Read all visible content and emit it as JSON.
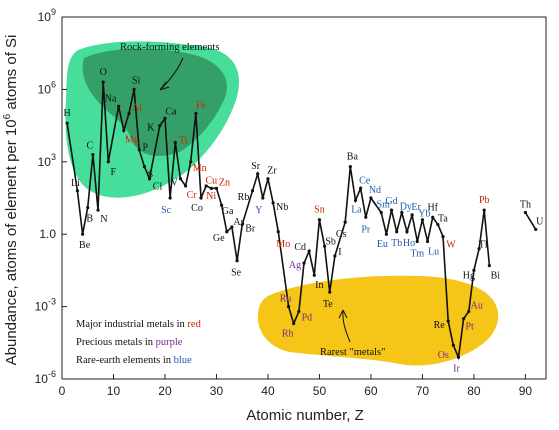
{
  "colors": {
    "red": "#cc2200",
    "purple": "#7a2a8c",
    "blue": "#1f5bb5",
    "black": "#111111",
    "rock_region": "#3ddc97",
    "rock_core": "#2e8b57",
    "rare_region": "#f5c518"
  },
  "chart_data": {
    "type": "line",
    "xlabel": "Atomic number, Z",
    "ylabel_main": "Abundance, atoms of element per 10",
    "ylabel_sup": "6",
    "ylabel_end": " atoms of Si",
    "xlim": [
      0,
      94
    ],
    "ylim_log10": [
      -6,
      9
    ],
    "x_ticks": [
      0,
      10,
      20,
      30,
      40,
      50,
      60,
      70,
      80,
      90
    ],
    "y_ticks": [
      {
        "base": "10",
        "exp": "9",
        "log": 9
      },
      {
        "base": "10",
        "exp": "6",
        "log": 6
      },
      {
        "base": "10",
        "exp": "3",
        "log": 3
      },
      {
        "base": "1.0",
        "exp": "",
        "log": 0
      },
      {
        "base": "10",
        "exp": "-3",
        "log": -3
      },
      {
        "base": "10",
        "exp": "-6",
        "log": -6
      }
    ],
    "region_labels": {
      "rock_forming": "Rock-forming elements",
      "rarest_metals": "Rarest \"metals\""
    },
    "legend": {
      "line1_prefix": "Major industrial metals in ",
      "line1_word": "red",
      "line2_prefix": "Precious metals in ",
      "line2_word": "purple",
      "line3_prefix": "Rare-earth elements in ",
      "line3_word": "blue"
    },
    "points": [
      {
        "z": 1,
        "sym": "H",
        "log": 4.6,
        "cat": "black"
      },
      {
        "z": 3,
        "sym": "Li",
        "log": 1.8,
        "cat": "black"
      },
      {
        "z": 4,
        "sym": "Be",
        "log": 0.0,
        "cat": "black"
      },
      {
        "z": 5,
        "sym": "B",
        "log": 1.1,
        "cat": "black"
      },
      {
        "z": 6,
        "sym": "C",
        "log": 3.3,
        "cat": "black"
      },
      {
        "z": 7,
        "sym": "N",
        "log": 1.0,
        "cat": "black"
      },
      {
        "z": 8,
        "sym": "O",
        "log": 6.3,
        "cat": "black"
      },
      {
        "z": 9,
        "sym": "F",
        "log": 3.0,
        "cat": "black"
      },
      {
        "z": 11,
        "sym": "Na",
        "log": 5.3,
        "cat": "black"
      },
      {
        "z": 12,
        "sym": "Mg",
        "log": 4.3,
        "cat": "red"
      },
      {
        "z": 13,
        "sym": "Al",
        "log": 5.0,
        "cat": "red"
      },
      {
        "z": 14,
        "sym": "Si",
        "log": 6.0,
        "cat": "black"
      },
      {
        "z": 15,
        "sym": "P",
        "log": 3.5,
        "cat": "black"
      },
      {
        "z": 16,
        "sym": "S",
        "log": 2.8,
        "cat": "black"
      },
      {
        "z": 17,
        "sym": "Cl",
        "log": 2.3,
        "cat": "black"
      },
      {
        "z": 19,
        "sym": "K",
        "log": 4.5,
        "cat": "black"
      },
      {
        "z": 20,
        "sym": "Ca",
        "log": 4.8,
        "cat": "black"
      },
      {
        "z": 21,
        "sym": "Sc",
        "log": 1.5,
        "cat": "blue"
      },
      {
        "z": 22,
        "sym": "Ti",
        "log": 3.8,
        "cat": "red"
      },
      {
        "z": 23,
        "sym": "V",
        "log": 2.3,
        "cat": "black"
      },
      {
        "z": 24,
        "sym": "Cr",
        "log": 2.0,
        "cat": "red"
      },
      {
        "z": 25,
        "sym": "Mn",
        "log": 3.0,
        "cat": "red"
      },
      {
        "z": 26,
        "sym": "Fe",
        "log": 5.0,
        "cat": "red"
      },
      {
        "z": 27,
        "sym": "Co",
        "log": 1.5,
        "cat": "black"
      },
      {
        "z": 28,
        "sym": "Ni",
        "log": 2.0,
        "cat": "red"
      },
      {
        "z": 29,
        "sym": "Cu",
        "log": 1.9,
        "cat": "red"
      },
      {
        "z": 30,
        "sym": "Zn",
        "log": 1.9,
        "cat": "red"
      },
      {
        "z": 31,
        "sym": "Ga",
        "log": 1.2,
        "cat": "black"
      },
      {
        "z": 32,
        "sym": "Ge",
        "log": 0.1,
        "cat": "black"
      },
      {
        "z": 33,
        "sym": "As",
        "log": 0.3,
        "cat": "black"
      },
      {
        "z": 34,
        "sym": "Se",
        "log": -1.1,
        "cat": "black"
      },
      {
        "z": 35,
        "sym": "Br",
        "log": 0.4,
        "cat": "black"
      },
      {
        "z": 37,
        "sym": "Rb",
        "log": 1.8,
        "cat": "black"
      },
      {
        "z": 38,
        "sym": "Sr",
        "log": 2.5,
        "cat": "black"
      },
      {
        "z": 39,
        "sym": "Y",
        "log": 1.5,
        "cat": "blue"
      },
      {
        "z": 40,
        "sym": "Zr",
        "log": 2.3,
        "cat": "black"
      },
      {
        "z": 41,
        "sym": "Nb",
        "log": 1.3,
        "cat": "black"
      },
      {
        "z": 42,
        "sym": "Mo",
        "log": 0.1,
        "cat": "red"
      },
      {
        "z": 44,
        "sym": "Ru",
        "log": -3.0,
        "cat": "purple"
      },
      {
        "z": 45,
        "sym": "Rh",
        "log": -3.7,
        "cat": "purple"
      },
      {
        "z": 46,
        "sym": "Pd",
        "log": -3.2,
        "cat": "purple"
      },
      {
        "z": 47,
        "sym": "Ag",
        "log": -1.2,
        "cat": "purple"
      },
      {
        "z": 48,
        "sym": "Cd",
        "log": -0.7,
        "cat": "black"
      },
      {
        "z": 49,
        "sym": "In",
        "log": -1.7,
        "cat": "black"
      },
      {
        "z": 50,
        "sym": "Sn",
        "log": 0.6,
        "cat": "red"
      },
      {
        "z": 51,
        "sym": "Sb",
        "log": -0.5,
        "cat": "black"
      },
      {
        "z": 52,
        "sym": "Te",
        "log": -2.4,
        "cat": "black"
      },
      {
        "z": 53,
        "sym": "I",
        "log": -0.9,
        "cat": "black"
      },
      {
        "z": 55,
        "sym": "Cs",
        "log": 0.5,
        "cat": "black"
      },
      {
        "z": 56,
        "sym": "Ba",
        "log": 2.8,
        "cat": "black"
      },
      {
        "z": 57,
        "sym": "La",
        "log": 1.4,
        "cat": "blue"
      },
      {
        "z": 58,
        "sym": "Ce",
        "log": 1.9,
        "cat": "blue"
      },
      {
        "z": 59,
        "sym": "Pr",
        "log": 0.7,
        "cat": "blue"
      },
      {
        "z": 60,
        "sym": "Nd",
        "log": 1.5,
        "cat": "blue"
      },
      {
        "z": 62,
        "sym": "Sm",
        "log": 0.9,
        "cat": "blue"
      },
      {
        "z": 63,
        "sym": "Eu",
        "log": 0.0,
        "cat": "blue"
      },
      {
        "z": 64,
        "sym": "Gd",
        "log": 1.0,
        "cat": "blue"
      },
      {
        "z": 65,
        "sym": "Tb",
        "log": 0.1,
        "cat": "blue"
      },
      {
        "z": 66,
        "sym": "Dy",
        "log": 0.9,
        "cat": "blue"
      },
      {
        "z": 67,
        "sym": "Ho",
        "log": 0.1,
        "cat": "blue"
      },
      {
        "z": 68,
        "sym": "Er",
        "log": 0.8,
        "cat": "blue"
      },
      {
        "z": 69,
        "sym": "Tm",
        "log": -0.3,
        "cat": "blue"
      },
      {
        "z": 70,
        "sym": "Yb",
        "log": 0.6,
        "cat": "blue"
      },
      {
        "z": 71,
        "sym": "Lu",
        "log": -0.3,
        "cat": "blue"
      },
      {
        "z": 72,
        "sym": "Hf",
        "log": 0.7,
        "cat": "black"
      },
      {
        "z": 73,
        "sym": "Ta",
        "log": 0.4,
        "cat": "black"
      },
      {
        "z": 74,
        "sym": "W",
        "log": -0.1,
        "cat": "red"
      },
      {
        "z": 75,
        "sym": "Re",
        "log": -3.6,
        "cat": "black"
      },
      {
        "z": 76,
        "sym": "Os",
        "log": -4.6,
        "cat": "purple"
      },
      {
        "z": 77,
        "sym": "Ir",
        "log": -5.1,
        "cat": "purple"
      },
      {
        "z": 78,
        "sym": "Pt",
        "log": -3.5,
        "cat": "purple"
      },
      {
        "z": 79,
        "sym": "Au",
        "log": -3.2,
        "cat": "purple"
      },
      {
        "z": 80,
        "sym": "Hg",
        "log": -1.5,
        "cat": "black"
      },
      {
        "z": 81,
        "sym": "Tl",
        "log": -0.6,
        "cat": "black"
      },
      {
        "z": 82,
        "sym": "Pb",
        "log": 1.0,
        "cat": "red"
      },
      {
        "z": 83,
        "sym": "Bi",
        "log": -1.3,
        "cat": "black"
      },
      {
        "z": 90,
        "sym": "Th",
        "log": 0.9,
        "cat": "black"
      },
      {
        "z": 92,
        "sym": "U",
        "log": 0.2,
        "cat": "black"
      }
    ]
  }
}
